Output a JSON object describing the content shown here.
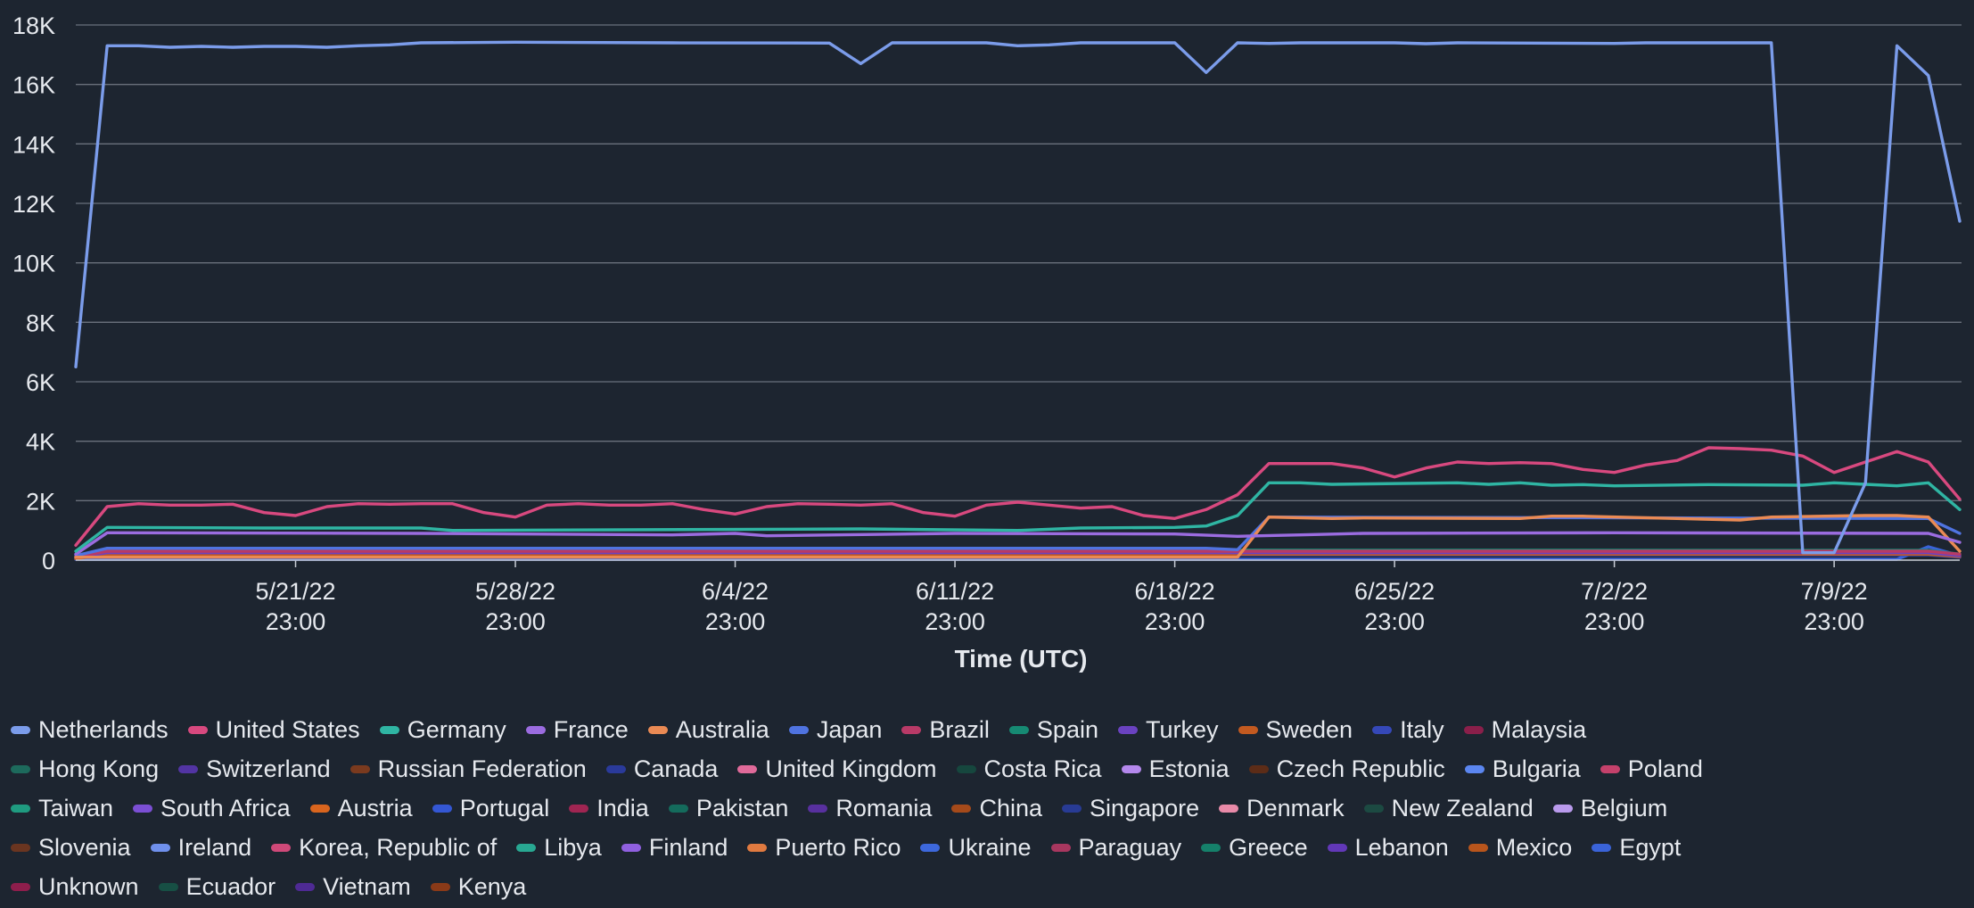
{
  "chart_data": {
    "type": "line",
    "title": "",
    "xlabel": "Time (UTC)",
    "ylabel": "",
    "ylim": [
      0,
      18000
    ],
    "yticks": [
      0,
      2000,
      4000,
      6000,
      8000,
      10000,
      12000,
      14000,
      16000,
      18000
    ],
    "ytick_labels": [
      "0",
      "2K",
      "4K",
      "6K",
      "8K",
      "10K",
      "12K",
      "14K",
      "16K",
      "18K"
    ],
    "x_start": "2022-05-14T23:00",
    "x_end": "2022-07-13T23:00",
    "x_tick_positions": [
      "2022-05-21T23:00",
      "2022-05-28T23:00",
      "2022-06-04T23:00",
      "2022-06-11T23:00",
      "2022-06-18T23:00",
      "2022-06-25T23:00",
      "2022-07-02T23:00",
      "2022-07-09T23:00"
    ],
    "x_tick_dates": [
      "5/21/22",
      "5/28/22",
      "6/4/22",
      "6/11/22",
      "6/18/22",
      "6/25/22",
      "7/2/22",
      "7/9/22"
    ],
    "x_tick_times": [
      "23:00",
      "23:00",
      "23:00",
      "23:00",
      "23:00",
      "23:00",
      "23:00",
      "23:00"
    ],
    "grid": true,
    "legend_position": "bottom",
    "legend_rows": [
      [
        "Netherlands",
        "United States",
        "Germany",
        "France",
        "Australia",
        "Japan",
        "Brazil",
        "Spain",
        "Turkey",
        "Sweden",
        "Italy",
        "Malaysia"
      ],
      [
        "Hong Kong",
        "Switzerland",
        "Russian Federation",
        "Canada",
        "United Kingdom",
        "Costa Rica",
        "Estonia",
        "Czech Republic",
        "Bulgaria",
        "Poland"
      ],
      [
        "Taiwan",
        "South Africa",
        "Austria",
        "Portugal",
        "India",
        "Pakistan",
        "Romania",
        "China",
        "Singapore",
        "Denmark",
        "New Zealand",
        "Belgium"
      ],
      [
        "Slovenia",
        "Ireland",
        "Korea, Republic of",
        "Libya",
        "Finland",
        "Puerto Rico",
        "Ukraine",
        "Paraguay",
        "Greece",
        "Lebanon",
        "Mexico",
        "Egypt"
      ],
      [
        "Unknown",
        "Ecuador",
        "Vietnam",
        "Kenya"
      ]
    ],
    "series": [
      {
        "name": "Netherlands",
        "color": "#7b9cea",
        "points": [
          [
            "2022-05-14T23:00",
            6500
          ],
          [
            "2022-05-15T23:00",
            17300
          ],
          [
            "2022-05-16T23:00",
            17300
          ],
          [
            "2022-05-17T23:00",
            17250
          ],
          [
            "2022-05-18T23:00",
            17280
          ],
          [
            "2022-05-19T23:00",
            17250
          ],
          [
            "2022-05-20T23:00",
            17280
          ],
          [
            "2022-05-21T23:00",
            17280
          ],
          [
            "2022-05-22T23:00",
            17250
          ],
          [
            "2022-05-23T23:00",
            17300
          ],
          [
            "2022-05-24T23:00",
            17330
          ],
          [
            "2022-05-25T23:00",
            17400
          ],
          [
            "2022-05-28T23:00",
            17420
          ],
          [
            "2022-06-02T23:00",
            17400
          ],
          [
            "2022-06-07T23:00",
            17390
          ],
          [
            "2022-06-08T23:00",
            16700
          ],
          [
            "2022-06-09T23:00",
            17400
          ],
          [
            "2022-06-12T23:00",
            17400
          ],
          [
            "2022-06-13T23:00",
            17300
          ],
          [
            "2022-06-14T23:00",
            17330
          ],
          [
            "2022-06-15T23:00",
            17400
          ],
          [
            "2022-06-18T23:00",
            17400
          ],
          [
            "2022-06-19T23:00",
            16400
          ],
          [
            "2022-06-20T23:00",
            17400
          ],
          [
            "2022-06-21T23:00",
            17380
          ],
          [
            "2022-06-22T23:00",
            17400
          ],
          [
            "2022-06-25T23:00",
            17400
          ],
          [
            "2022-06-26T23:00",
            17370
          ],
          [
            "2022-06-27T23:00",
            17400
          ],
          [
            "2022-07-02T23:00",
            17380
          ],
          [
            "2022-07-03T23:00",
            17400
          ],
          [
            "2022-07-07T23:00",
            17400
          ],
          [
            "2022-07-08T23:00",
            250
          ],
          [
            "2022-07-09T23:00",
            250
          ],
          [
            "2022-07-10T23:00",
            2600
          ],
          [
            "2022-07-11T23:00",
            17300
          ],
          [
            "2022-07-12T23:00",
            16300
          ],
          [
            "2022-07-13T23:00",
            11400
          ]
        ]
      },
      {
        "name": "United States",
        "color": "#d8497f",
        "points": [
          [
            "2022-05-14T23:00",
            500
          ],
          [
            "2022-05-15T23:00",
            1800
          ],
          [
            "2022-05-16T23:00",
            1900
          ],
          [
            "2022-05-17T23:00",
            1850
          ],
          [
            "2022-05-18T23:00",
            1850
          ],
          [
            "2022-05-19T23:00",
            1880
          ],
          [
            "2022-05-20T23:00",
            1600
          ],
          [
            "2022-05-21T23:00",
            1500
          ],
          [
            "2022-05-22T23:00",
            1800
          ],
          [
            "2022-05-23T23:00",
            1900
          ],
          [
            "2022-05-24T23:00",
            1880
          ],
          [
            "2022-05-25T23:00",
            1900
          ],
          [
            "2022-05-26T23:00",
            1900
          ],
          [
            "2022-05-27T23:00",
            1600
          ],
          [
            "2022-05-28T23:00",
            1450
          ],
          [
            "2022-05-29T23:00",
            1850
          ],
          [
            "2022-05-30T23:00",
            1900
          ],
          [
            "2022-05-31T23:00",
            1850
          ],
          [
            "2022-06-01T23:00",
            1850
          ],
          [
            "2022-06-02T23:00",
            1900
          ],
          [
            "2022-06-03T23:00",
            1700
          ],
          [
            "2022-06-04T23:00",
            1550
          ],
          [
            "2022-06-05T23:00",
            1800
          ],
          [
            "2022-06-06T23:00",
            1900
          ],
          [
            "2022-06-07T23:00",
            1880
          ],
          [
            "2022-06-08T23:00",
            1850
          ],
          [
            "2022-06-09T23:00",
            1900
          ],
          [
            "2022-06-10T23:00",
            1600
          ],
          [
            "2022-06-11T23:00",
            1480
          ],
          [
            "2022-06-12T23:00",
            1850
          ],
          [
            "2022-06-13T23:00",
            1950
          ],
          [
            "2022-06-14T23:00",
            1850
          ],
          [
            "2022-06-15T23:00",
            1750
          ],
          [
            "2022-06-16T23:00",
            1800
          ],
          [
            "2022-06-17T23:00",
            1500
          ],
          [
            "2022-06-18T23:00",
            1400
          ],
          [
            "2022-06-19T23:00",
            1700
          ],
          [
            "2022-06-20T23:00",
            2200
          ],
          [
            "2022-06-21T23:00",
            3250
          ],
          [
            "2022-06-22T23:00",
            3250
          ],
          [
            "2022-06-23T23:00",
            3250
          ],
          [
            "2022-06-24T23:00",
            3100
          ],
          [
            "2022-06-25T23:00",
            2800
          ],
          [
            "2022-06-26T23:00",
            3100
          ],
          [
            "2022-06-27T23:00",
            3300
          ],
          [
            "2022-06-28T23:00",
            3250
          ],
          [
            "2022-06-29T23:00",
            3280
          ],
          [
            "2022-06-30T23:00",
            3250
          ],
          [
            "2022-07-01T23:00",
            3050
          ],
          [
            "2022-07-02T23:00",
            2950
          ],
          [
            "2022-07-03T23:00",
            3200
          ],
          [
            "2022-07-04T23:00",
            3350
          ],
          [
            "2022-07-05T23:00",
            3780
          ],
          [
            "2022-07-06T23:00",
            3750
          ],
          [
            "2022-07-07T23:00",
            3700
          ],
          [
            "2022-07-08T23:00",
            3500
          ],
          [
            "2022-07-09T23:00",
            2950
          ],
          [
            "2022-07-10T23:00",
            3300
          ],
          [
            "2022-07-11T23:00",
            3650
          ],
          [
            "2022-07-12T23:00",
            3300
          ],
          [
            "2022-07-13T23:00",
            2050
          ]
        ]
      },
      {
        "name": "Germany",
        "color": "#2fb5a3",
        "points": [
          [
            "2022-05-14T23:00",
            300
          ],
          [
            "2022-05-15T23:00",
            1100
          ],
          [
            "2022-05-20T23:00",
            1080
          ],
          [
            "2022-05-25T23:00",
            1080
          ],
          [
            "2022-05-26T23:00",
            1000
          ],
          [
            "2022-06-08T23:00",
            1050
          ],
          [
            "2022-06-13T23:00",
            1000
          ],
          [
            "2022-06-15T23:00",
            1080
          ],
          [
            "2022-06-18T23:00",
            1100
          ],
          [
            "2022-06-19T23:00",
            1150
          ],
          [
            "2022-06-20T23:00",
            1500
          ],
          [
            "2022-06-21T23:00",
            2600
          ],
          [
            "2022-06-22T23:00",
            2600
          ],
          [
            "2022-06-23T23:00",
            2550
          ],
          [
            "2022-06-27T23:00",
            2600
          ],
          [
            "2022-06-28T23:00",
            2550
          ],
          [
            "2022-06-29T23:00",
            2600
          ],
          [
            "2022-06-30T23:00",
            2520
          ],
          [
            "2022-07-01T23:00",
            2540
          ],
          [
            "2022-07-02T23:00",
            2500
          ],
          [
            "2022-07-05T23:00",
            2540
          ],
          [
            "2022-07-08T23:00",
            2520
          ],
          [
            "2022-07-09T23:00",
            2600
          ],
          [
            "2022-07-10T23:00",
            2550
          ],
          [
            "2022-07-11T23:00",
            2500
          ],
          [
            "2022-07-12T23:00",
            2600
          ],
          [
            "2022-07-13T23:00",
            1700
          ]
        ]
      },
      {
        "name": "France",
        "color": "#9b6ce0",
        "points": [
          [
            "2022-05-14T23:00",
            200
          ],
          [
            "2022-05-15T23:00",
            920
          ],
          [
            "2022-05-25T23:00",
            900
          ],
          [
            "2022-06-02T23:00",
            850
          ],
          [
            "2022-06-04T23:00",
            900
          ],
          [
            "2022-06-05T23:00",
            820
          ],
          [
            "2022-06-11T23:00",
            900
          ],
          [
            "2022-06-18T23:00",
            880
          ],
          [
            "2022-06-20T23:00",
            800
          ],
          [
            "2022-06-22T23:00",
            850
          ],
          [
            "2022-06-24T23:00",
            900
          ],
          [
            "2022-07-02T23:00",
            920
          ],
          [
            "2022-07-12T23:00",
            900
          ],
          [
            "2022-07-13T23:00",
            600
          ]
        ]
      },
      {
        "name": "Australia",
        "color": "#ea8a54",
        "points": [
          [
            "2022-05-14T23:00",
            100
          ],
          [
            "2022-06-20T23:00",
            100
          ],
          [
            "2022-06-21T23:00",
            1450
          ],
          [
            "2022-06-23T23:00",
            1400
          ],
          [
            "2022-06-24T23:00",
            1420
          ],
          [
            "2022-06-29T23:00",
            1400
          ],
          [
            "2022-06-30T23:00",
            1480
          ],
          [
            "2022-07-01T23:00",
            1480
          ],
          [
            "2022-07-06T23:00",
            1350
          ],
          [
            "2022-07-07T23:00",
            1450
          ],
          [
            "2022-07-10T23:00",
            1500
          ],
          [
            "2022-07-11T23:00",
            1500
          ],
          [
            "2022-07-12T23:00",
            1450
          ],
          [
            "2022-07-13T23:00",
            300
          ]
        ]
      },
      {
        "name": "Japan",
        "color": "#4f73e0",
        "points": [
          [
            "2022-05-14T23:00",
            150
          ],
          [
            "2022-05-15T23:00",
            400
          ],
          [
            "2022-06-19T23:00",
            400
          ],
          [
            "2022-06-20T23:00",
            350
          ],
          [
            "2022-06-21T23:00",
            1450
          ],
          [
            "2022-07-12T23:00",
            1400
          ],
          [
            "2022-07-13T23:00",
            900
          ]
        ]
      },
      {
        "name": "Brazil",
        "color": "#b83a67",
        "points": [
          [
            "2022-05-14T23:00",
            100
          ],
          [
            "2022-05-15T23:00",
            300
          ],
          [
            "2022-07-12T23:00",
            300
          ],
          [
            "2022-07-13T23:00",
            200
          ]
        ]
      },
      {
        "name": "Spain",
        "color": "#168a73",
        "points": [
          [
            "2022-05-14T23:00",
            100
          ],
          [
            "2022-05-15T23:00",
            350
          ],
          [
            "2022-07-12T23:00",
            330
          ],
          [
            "2022-07-13T23:00",
            200
          ]
        ]
      },
      {
        "name": "Turkey",
        "color": "#6a42c0",
        "points": [
          [
            "2022-05-14T23:00",
            100
          ],
          [
            "2022-05-15T23:00",
            250
          ],
          [
            "2022-07-12T23:00",
            250
          ],
          [
            "2022-07-13T23:00",
            150
          ]
        ]
      },
      {
        "name": "Sweden",
        "color": "#c35a20",
        "points": [
          [
            "2022-05-14T23:00",
            50
          ],
          [
            "2022-05-15T23:00",
            200
          ],
          [
            "2022-07-12T23:00",
            200
          ],
          [
            "2022-07-13T23:00",
            120
          ]
        ]
      },
      {
        "name": "Italy",
        "color": "#3548b8",
        "points": [
          [
            "2022-05-14T23:00",
            50
          ],
          [
            "2022-05-15T23:00",
            180
          ],
          [
            "2022-07-12T23:00",
            180
          ],
          [
            "2022-07-13T23:00",
            100
          ]
        ]
      },
      {
        "name": "Egypt",
        "color": "#3a63d8",
        "points": [
          [
            "2022-05-14T23:00",
            30
          ],
          [
            "2022-07-10T23:00",
            30
          ],
          [
            "2022-07-11T23:00",
            30
          ],
          [
            "2022-07-12T23:00",
            450
          ],
          [
            "2022-07-13T23:00",
            150
          ]
        ]
      }
    ]
  },
  "legend_colors": {
    "Netherlands": "#7b9cea",
    "United States": "#d8497f",
    "Germany": "#2fb5a3",
    "France": "#9b6ce0",
    "Australia": "#ea8a54",
    "Japan": "#4f73e0",
    "Brazil": "#b83a67",
    "Spain": "#168a73",
    "Turkey": "#6a42c0",
    "Sweden": "#c35a20",
    "Italy": "#3548b8",
    "Malaysia": "#8a1f4a",
    "Hong Kong": "#1d6a5c",
    "Switzerland": "#5234a3",
    "Russian Federation": "#7a3a1e",
    "Canada": "#2a3a9a",
    "United Kingdom": "#e06a9a",
    "Costa Rica": "#16473e",
    "Estonia": "#b488ec",
    "Czech Republic": "#5c2c17",
    "Bulgaria": "#5b86f0",
    "Poland": "#c4416b",
    "Taiwan": "#1f9b80",
    "South Africa": "#7b4fd4",
    "Austria": "#d9651e",
    "Portugal": "#3457d4",
    "India": "#a02552",
    "Pakistan": "#146b5c",
    "Romania": "#58309f",
    "China": "#a54a1a",
    "Singapore": "#283b94",
    "Denmark": "#e88aa8",
    "New Zealand": "#1c4a42",
    "Belgium": "#b99aec",
    "Slovenia": "#6a3520",
    "Ireland": "#6f90ec",
    "Korea, Republic of": "#cf4979",
    "Libya": "#28a892",
    "Finland": "#9060e0",
    "Puerto Rico": "#e07a40",
    "Ukraine": "#3d68dc",
    "Paraguay": "#a8375f",
    "Greece": "#15806a",
    "Lebanon": "#6238b8",
    "Mexico": "#b8551c",
    "Egypt": "#3a63d8",
    "Unknown": "#8e1e4c",
    "Ecuador": "#174f44",
    "Vietnam": "#4e2a94",
    "Kenya": "#8a3a18"
  }
}
